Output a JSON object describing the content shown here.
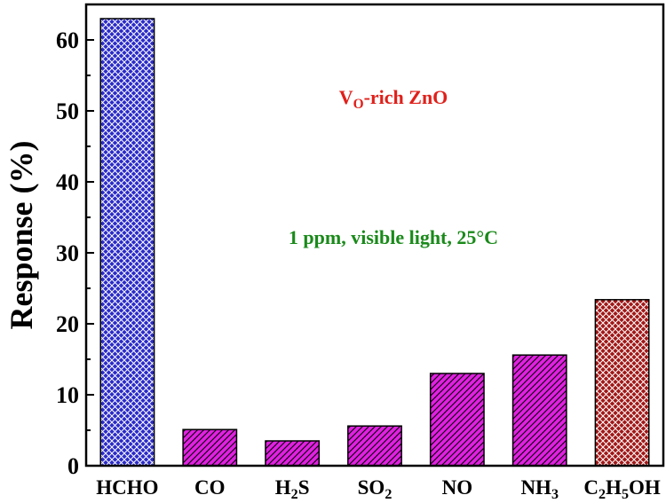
{
  "chart_data": {
    "type": "bar",
    "categories": [
      "HCHO",
      "CO",
      "H2S",
      "SO2",
      "NO",
      "NH3",
      "C2H5OH"
    ],
    "category_labels": [
      [
        {
          "t": "HCHO"
        }
      ],
      [
        {
          "t": "CO"
        }
      ],
      [
        {
          "t": "H"
        },
        {
          "t": "2",
          "sub": true
        },
        {
          "t": "S"
        }
      ],
      [
        {
          "t": "SO"
        },
        {
          "t": "2",
          "sub": true
        }
      ],
      [
        {
          "t": "NO"
        }
      ],
      [
        {
          "t": "NH"
        },
        {
          "t": "3",
          "sub": true
        }
      ],
      [
        {
          "t": "C"
        },
        {
          "t": "2",
          "sub": true
        },
        {
          "t": "H"
        },
        {
          "t": "5",
          "sub": true
        },
        {
          "t": "OH"
        }
      ]
    ],
    "values": [
      63.0,
      5.1,
      3.5,
      5.6,
      13.0,
      15.6,
      23.4
    ],
    "bar_colors": [
      "#2b2bc8",
      "#e020e0",
      "#e020e0",
      "#e020e0",
      "#e020e0",
      "#e020e0",
      "#a01818"
    ],
    "bar_patterns": [
      "crosshatch",
      "diagonal",
      "diagonal",
      "diagonal",
      "diagonal",
      "diagonal",
      "crosshatch"
    ],
    "ylabel": "Response (%)",
    "xlabel": "",
    "ylim": [
      0,
      65
    ],
    "yticks": [
      0,
      10,
      20,
      30,
      40,
      50,
      60
    ],
    "grid": false,
    "annotations": [
      {
        "id": "material",
        "color": "#e0201a",
        "parts": [
          {
            "t": "V"
          },
          {
            "t": "O",
            "sub": true
          },
          {
            "t": "-rich ZnO"
          }
        ]
      },
      {
        "id": "condition",
        "color": "#1a8a1a",
        "parts": [
          {
            "t": "1 ppm, visible light, 25°C"
          }
        ]
      }
    ]
  }
}
